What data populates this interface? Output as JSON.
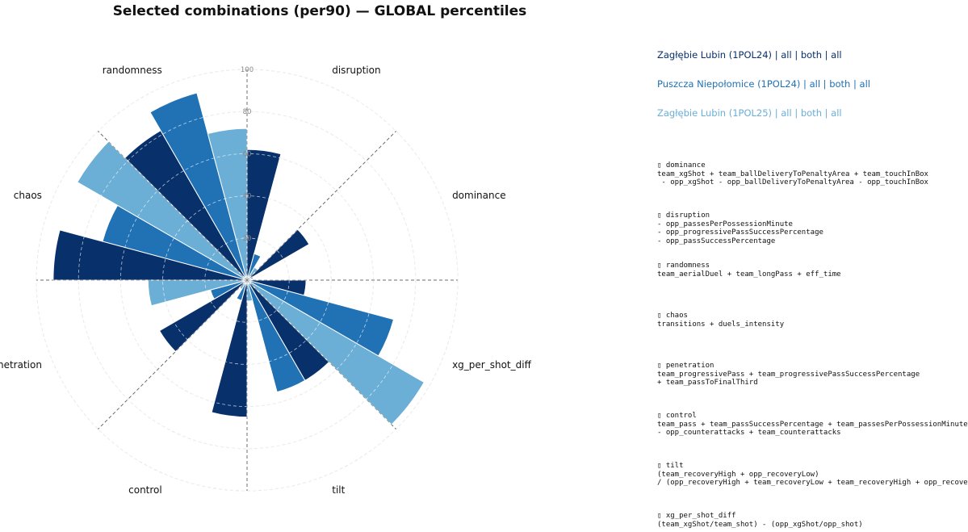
{
  "chart_data": {
    "type": "polar-bar",
    "title": "Selected combinations (per90) — GLOBAL percentiles",
    "categories": [
      "disruption",
      "dominance",
      "xg_per_shot_diff",
      "tilt",
      "control",
      "penetration",
      "chaos",
      "randomness"
    ],
    "r_ticks": [
      "20",
      "40",
      "60",
      "80",
      "100"
    ],
    "rlim": [
      0,
      100
    ],
    "grid": true,
    "legend_position": "right",
    "series": [
      {
        "name": "Zagłębie Lubin (1POL24) | all | both | all",
        "color": "#08306b",
        "values": [
          62,
          34,
          28,
          55,
          65,
          48,
          92,
          82
        ]
      },
      {
        "name": "Puszcza Niepołomice (1POL24) | all | both | all",
        "color": "#2171b5",
        "values": [
          13,
          3,
          72,
          55,
          10,
          18,
          71,
          92
        ]
      },
      {
        "name": "Zagłębie Lubin (1POL25) | all | both | all",
        "color": "#6baed6",
        "values": [
          7,
          1,
          97,
          10,
          5,
          47,
          93,
          72
        ]
      }
    ]
  },
  "formulas": [
    {
      "icon": "▯",
      "name": "dominance",
      "lines": [
        "team_xgShot + team_ballDeliveryToPenaltyArea + team_touchInBox",
        " - opp_xgShot - opp_ballDeliveryToPenaltyArea - opp_touchInBox"
      ]
    },
    {
      "icon": "▯",
      "name": "disruption",
      "lines": [
        "- opp_passesPerPossessionMinute",
        "- opp_progressivePassSuccessPercentage",
        "- opp_passSuccessPercentage"
      ]
    },
    {
      "icon": "▯",
      "name": "randomness",
      "lines": [
        "team_aerialDuel + team_longPass + eff_time"
      ]
    },
    {
      "icon": "▯",
      "name": "chaos",
      "lines": [
        "transitions + duels_intensity"
      ]
    },
    {
      "icon": "▯",
      "name": "penetration",
      "lines": [
        "team_progressivePass + team_progressivePassSuccessPercentage",
        "+ team_passToFinalThird"
      ]
    },
    {
      "icon": "▯",
      "name": "control",
      "lines": [
        "team_pass + team_passSuccessPercentage + team_passesPerPossessionMinute",
        "- opp_counterattacks + team_counterattacks"
      ]
    },
    {
      "icon": "▯",
      "name": "tilt",
      "lines": [
        "(team_recoveryHigh + opp_recoveryLow)",
        "/ (opp_recoveryHigh + team_recoveryLow + team_recoveryHigh + opp_recoveryLow)"
      ]
    },
    {
      "icon": "▯",
      "name": "xg_per_shot_diff",
      "lines": [
        "(team_xgShot/team_shot) - (opp_xgShot/opp_shot)"
      ]
    }
  ]
}
